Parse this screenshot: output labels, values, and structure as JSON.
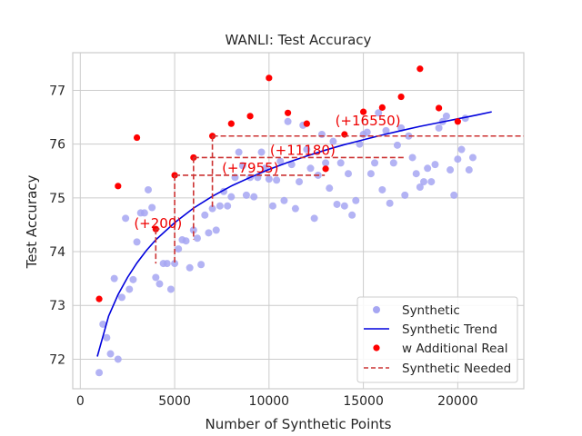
{
  "chart_data": {
    "type": "scatter",
    "title": "WANLI: Test Accuracy",
    "xlabel": "Number of Synthetic Points",
    "ylabel": "Test Accuracy",
    "xlim": [
      -400,
      23500
    ],
    "ylim": [
      71.45,
      77.7
    ],
    "xticks": [
      0,
      5000,
      10000,
      15000,
      20000
    ],
    "yticks": [
      72,
      73,
      74,
      75,
      76,
      77
    ],
    "grid": true,
    "legend_position": "lower-right",
    "colors": {
      "synthetic": "#a6a6f2",
      "trend": "#0000dd",
      "real": "#ff0000",
      "needed": "#cc3333",
      "annot": "#ee0000",
      "grid": "#cccccc",
      "spine": "#cccccc"
    },
    "series": [
      {
        "name": "Synthetic",
        "kind": "scatter",
        "points": [
          [
            1000,
            71.75
          ],
          [
            1200,
            72.65
          ],
          [
            1400,
            72.4
          ],
          [
            1600,
            72.1
          ],
          [
            1800,
            73.5
          ],
          [
            2000,
            72.0
          ],
          [
            2200,
            73.15
          ],
          [
            2400,
            74.62
          ],
          [
            2600,
            73.3
          ],
          [
            2800,
            73.48
          ],
          [
            3000,
            74.18
          ],
          [
            3200,
            74.72
          ],
          [
            3400,
            74.72
          ],
          [
            3600,
            75.15
          ],
          [
            3800,
            74.82
          ],
          [
            4000,
            73.52
          ],
          [
            4200,
            73.4
          ],
          [
            4400,
            73.78
          ],
          [
            4600,
            73.78
          ],
          [
            4800,
            73.3
          ],
          [
            5000,
            73.78
          ],
          [
            5200,
            74.05
          ],
          [
            5400,
            74.22
          ],
          [
            5600,
            74.2
          ],
          [
            5800,
            73.7
          ],
          [
            6000,
            74.4
          ],
          [
            6200,
            74.25
          ],
          [
            6400,
            73.76
          ],
          [
            6600,
            74.68
          ],
          [
            6800,
            74.35
          ],
          [
            7000,
            74.8
          ],
          [
            7200,
            74.4
          ],
          [
            7400,
            74.85
          ],
          [
            7600,
            75.12
          ],
          [
            7800,
            74.85
          ],
          [
            8000,
            75.02
          ],
          [
            8200,
            75.38
          ],
          [
            8400,
            75.85
          ],
          [
            8600,
            75.6
          ],
          [
            8800,
            75.05
          ],
          [
            9000,
            75.38
          ],
          [
            9200,
            75.02
          ],
          [
            9400,
            75.38
          ],
          [
            9600,
            75.85
          ],
          [
            9800,
            75.55
          ],
          [
            10000,
            75.35
          ],
          [
            10200,
            74.85
          ],
          [
            10400,
            75.33
          ],
          [
            10600,
            75.68
          ],
          [
            10800,
            74.95
          ],
          [
            11000,
            76.42
          ],
          [
            11200,
            75.62
          ],
          [
            11400,
            74.8
          ],
          [
            11600,
            75.3
          ],
          [
            11800,
            76.35
          ],
          [
            12000,
            75.9
          ],
          [
            12200,
            75.55
          ],
          [
            12400,
            74.62
          ],
          [
            12600,
            75.42
          ],
          [
            12800,
            76.18
          ],
          [
            13000,
            75.65
          ],
          [
            13200,
            75.18
          ],
          [
            13400,
            76.05
          ],
          [
            13600,
            74.88
          ],
          [
            13800,
            75.65
          ],
          [
            14000,
            74.85
          ],
          [
            14200,
            75.45
          ],
          [
            14400,
            74.68
          ],
          [
            14600,
            74.95
          ],
          [
            14800,
            76.0
          ],
          [
            15000,
            76.18
          ],
          [
            15200,
            76.22
          ],
          [
            15400,
            75.45
          ],
          [
            15600,
            75.65
          ],
          [
            15800,
            76.58
          ],
          [
            16000,
            75.15
          ],
          [
            16200,
            76.25
          ],
          [
            16400,
            74.9
          ],
          [
            16600,
            75.65
          ],
          [
            16800,
            75.98
          ],
          [
            17000,
            76.3
          ],
          [
            17200,
            75.05
          ],
          [
            17400,
            76.15
          ],
          [
            17600,
            75.75
          ],
          [
            17800,
            75.45
          ],
          [
            18000,
            75.2
          ],
          [
            18200,
            75.3
          ],
          [
            18400,
            75.55
          ],
          [
            18600,
            75.3
          ],
          [
            18800,
            75.62
          ],
          [
            19000,
            76.3
          ],
          [
            19200,
            76.42
          ],
          [
            19400,
            76.52
          ],
          [
            19600,
            75.52
          ],
          [
            19800,
            75.05
          ],
          [
            20000,
            75.72
          ],
          [
            20200,
            75.9
          ],
          [
            20400,
            76.48
          ],
          [
            20600,
            75.52
          ],
          [
            20800,
            75.75
          ]
        ]
      },
      {
        "name": "Synthetic Trend",
        "kind": "line",
        "x": [
          900,
          1500,
          2000,
          2500,
          3000,
          3500,
          4000,
          5000,
          6000,
          7000,
          8000,
          9000,
          10000,
          11000,
          12000,
          13000,
          14000,
          15000,
          16000,
          17000,
          18000,
          19000,
          20000,
          21000,
          21800
        ],
        "y": [
          72.05,
          72.8,
          73.2,
          73.52,
          73.79,
          74.02,
          74.22,
          74.54,
          74.81,
          75.03,
          75.22,
          75.38,
          75.53,
          75.66,
          75.78,
          75.89,
          75.99,
          76.08,
          76.17,
          76.25,
          76.33,
          76.4,
          76.47,
          76.54,
          76.6
        ]
      },
      {
        "name": "w Additional Real",
        "kind": "scatter",
        "points": [
          [
            1000,
            73.12
          ],
          [
            2000,
            75.22
          ],
          [
            3000,
            76.12
          ],
          [
            4000,
            74.42
          ],
          [
            5000,
            75.42
          ],
          [
            6000,
            75.75
          ],
          [
            7000,
            76.15
          ],
          [
            8000,
            76.38
          ],
          [
            9000,
            76.52
          ],
          [
            10000,
            77.23
          ],
          [
            11000,
            76.58
          ],
          [
            12000,
            76.38
          ],
          [
            13000,
            75.54
          ],
          [
            14000,
            76.18
          ],
          [
            15000,
            76.6
          ],
          [
            16000,
            76.68
          ],
          [
            17000,
            76.88
          ],
          [
            18000,
            77.4
          ],
          [
            19000,
            76.67
          ],
          [
            20000,
            76.42
          ]
        ]
      },
      {
        "name": "Synthetic Needed",
        "kind": "dashed"
      }
    ],
    "annotations": [
      {
        "label": "(+200)",
        "real_x": 4000,
        "y": 74.42,
        "equiv_x": 4200,
        "drop_to": 73.78
      },
      {
        "label": "(+7955)",
        "real_x": 5000,
        "y": 75.42,
        "equiv_x": 12955,
        "drop_to": 73.78
      },
      {
        "label": "(+11180)",
        "real_x": 6000,
        "y": 75.75,
        "equiv_x": 17180,
        "drop_to": 74.22
      },
      {
        "label": "(+16550)",
        "real_x": 7000,
        "y": 76.15,
        "equiv_x": 23550,
        "drop_to": 74.82
      }
    ]
  }
}
